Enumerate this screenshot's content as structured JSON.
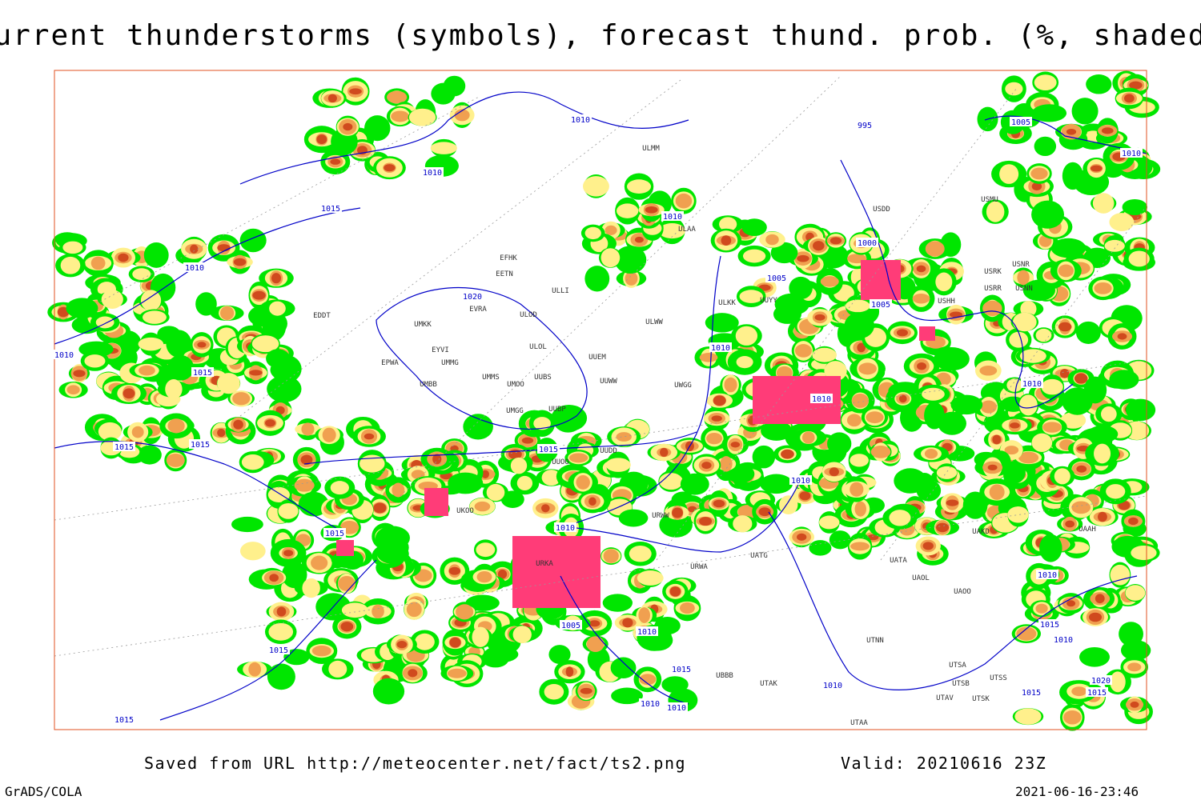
{
  "header": {
    "title": "Current thunderstorms (symbols), forecast thund. prob. (%, shaded)"
  },
  "isobar_labels": [
    1010,
    1010,
    1015,
    1010,
    1010,
    1000,
    1005,
    1005,
    1020,
    1010,
    1015,
    1010,
    1010,
    1010,
    1015,
    1015,
    1015,
    1010,
    1010,
    1015,
    1005,
    1010,
    1015,
    1015,
    1010,
    1010,
    1010,
    1015,
    1010,
    1015,
    1010,
    1020,
    1015,
    995,
    1005,
    1010,
    1015
  ],
  "stations": [
    "EFHK",
    "EETN",
    "ULLI",
    "ULOD",
    "EVRA",
    "UMKK",
    "EDDT",
    "EYVI",
    "ULOL",
    "UUEM",
    "EPWA",
    "UMMS",
    "UUBS",
    "UUWW",
    "UMMG",
    "UMBB",
    "UMOO",
    "UMGG",
    "UUBP",
    "UWGG",
    "ULWW",
    "ULKK",
    "UUYY",
    "ULAA",
    "ULMM",
    "USDD",
    "USHH",
    "USMU",
    "USRK",
    "USNR",
    "USRR",
    "USNN",
    "UUOO",
    "UUDD",
    "UKOO",
    "URKA",
    "URWW",
    "UATG",
    "URWA",
    "UATA",
    "UAOL",
    "UAOO",
    "UAKD",
    "UAAH",
    "UTNN",
    "UTAK",
    "UBBB",
    "UTSA",
    "UTSB",
    "UTSS",
    "UTAV",
    "UTSK",
    "UTAA"
  ],
  "footer": {
    "source": "Saved from URL http://meteocenter.net/fact/ts2.png",
    "valid": "Valid: 20210616 23Z",
    "software": "GrADS/COLA",
    "timestamp": "2021-06-16-23:46"
  }
}
